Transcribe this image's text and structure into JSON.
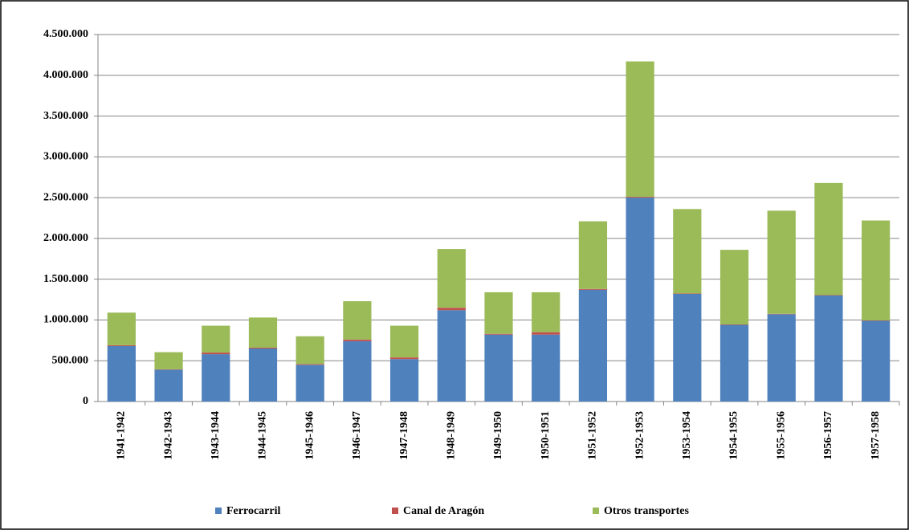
{
  "chart_data": {
    "type": "stacked_bar",
    "categories": [
      "1941-1942",
      "1942-1943",
      "1943-1944",
      "1944-1945",
      "1945-1946",
      "1946-1947",
      "1947-1948",
      "1948-1949",
      "1949-1950",
      "1950-1951",
      "1951-1952",
      "1952-1953",
      "1953-1954",
      "1954-1955",
      "1955-1956",
      "1956-1957",
      "1957-1958"
    ],
    "series": [
      {
        "name": "Ferrocarril",
        "color": "#4f81bd",
        "values": [
          680000,
          390000,
          580000,
          650000,
          450000,
          740000,
          520000,
          1120000,
          820000,
          820000,
          1370000,
          2500000,
          1320000,
          940000,
          1070000,
          1300000,
          990000
        ]
      },
      {
        "name": "Canal de Aragón",
        "color": "#c0504d",
        "values": [
          10000,
          5000,
          20000,
          10000,
          10000,
          20000,
          20000,
          30000,
          10000,
          30000,
          10000,
          10000,
          5000,
          5000,
          5000,
          5000,
          5000
        ]
      },
      {
        "name": "Otros transportes",
        "color": "#9bbb59",
        "values": [
          400000,
          210000,
          330000,
          370000,
          340000,
          470000,
          390000,
          720000,
          510000,
          490000,
          830000,
          1660000,
          1035000,
          915000,
          1265000,
          1375000,
          1225000
        ]
      }
    ],
    "ylim": [
      0,
      4500000
    ],
    "yticks": [
      0,
      {
        "value": 500000,
        "label": "500.000"
      },
      {
        "value": 1000000,
        "label": "1.000.000"
      },
      {
        "value": 1500000,
        "label": "1.500.000"
      },
      {
        "value": 2000000,
        "label": "2.000.000"
      },
      {
        "value": 2500000,
        "label": "2.500.000"
      },
      {
        "value": 3000000,
        "label": "3.000.000"
      },
      {
        "value": 3500000,
        "label": "3.500.000"
      },
      {
        "value": 4000000,
        "label": "4.000.000"
      },
      {
        "value": 4500000,
        "label": "4.500.000"
      }
    ],
    "grid": true,
    "legend": "bottom"
  }
}
